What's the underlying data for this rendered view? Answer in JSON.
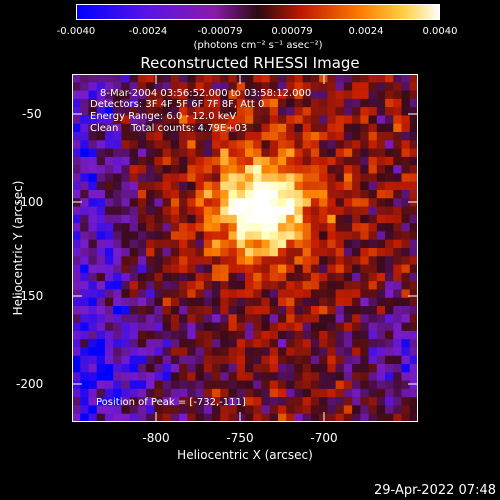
{
  "colorbar": {
    "ticks": [
      "-0.0040",
      "-0.0024",
      "-0.00079",
      "0.00079",
      "0.0024",
      "0.0040"
    ],
    "units": "(photons cm⁻² s⁻¹ asec⁻²)"
  },
  "title": "Reconstructed RHESSI Image",
  "info": {
    "time_range": "8-Mar-2004 03:56:52.000 to 03:58:12.000",
    "detectors": "Detectors: 3F 4F 5F 6F 7F 8F, Att 0",
    "energy": "Energy Range: 6.0 - 12.0 keV",
    "clean": "Clean    Total counts: 4.79E+03",
    "peak": "Position of Peak = [-732,-111]"
  },
  "x_axis": {
    "label": "Heliocentric X (arcsec)",
    "ticks": [
      "-800",
      "-750",
      "-700"
    ]
  },
  "y_axis": {
    "label": "Heliocentric Y (arcsec)",
    "ticks": [
      "-50",
      "-100",
      "-150",
      "-200"
    ]
  },
  "footer_date": "29-Apr-2022 07:48",
  "image": {
    "grid_cols": 42,
    "grid_rows": 42,
    "peak_x": -732,
    "peak_y": -111,
    "x_range": [
      -845,
      -640
    ],
    "y_range": [
      -222,
      -40
    ],
    "colormap": [
      "#0000ff",
      "#7a1cc8",
      "#3a0a1a",
      "#c81e00",
      "#ff8a00",
      "#ffffb0",
      "#ffffff"
    ]
  }
}
